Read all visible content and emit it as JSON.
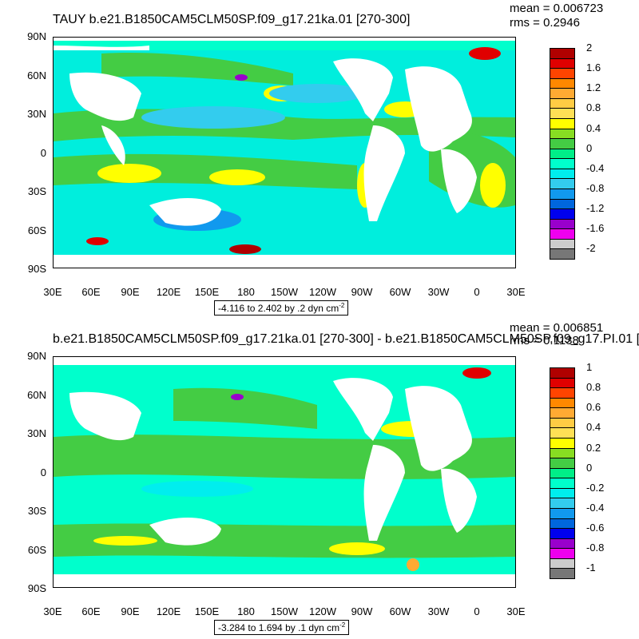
{
  "panels": [
    {
      "title": "TAUY b.e21.B1850CAM5CLM50SP.f09_g17.21ka.01 [270-300]",
      "mean": "mean = 0.006723",
      "rms": "rms = 0.2946",
      "range_label": "-4.116 to 2.402 by .2 dyn cm",
      "range_exp": "-2",
      "lat_labels": [
        "90N",
        "60N",
        "30N",
        "0",
        "30S",
        "60S",
        "90S"
      ],
      "lon_labels": [
        "30E",
        "60E",
        "90E",
        "120E",
        "150E",
        "180",
        "150W",
        "120W",
        "90W",
        "60W",
        "30W",
        "0",
        "30E"
      ],
      "colorbar_labels": [
        "2",
        "1.6",
        "1.2",
        "0.8",
        "0.4",
        "0",
        "-0.4",
        "-0.8",
        "-1.2",
        "-1.6",
        "-2"
      ],
      "colors": [
        "#b00000",
        "#e00000",
        "#ff4400",
        "#ff8800",
        "#ffaa33",
        "#ffcc44",
        "#ffe055",
        "#ffff00",
        "#88dd22",
        "#44cc44",
        "#00ee88",
        "#00ffcc",
        "#00eeee",
        "#33ccee",
        "#1199ee",
        "#0066dd",
        "#0000ee",
        "#9900cc",
        "#ee00ee",
        "#cccccc",
        "#777777"
      ]
    },
    {
      "title": "b.e21.B1850CAM5CLM50SP.f09_g17.21ka.01 [270-300] - b.e21.B1850CAM5CLM50SP.f09_g17.PI.01 [",
      "mean": "mean = 0.006851",
      "rms": "rms = 0.1138",
      "range_label": "-3.284 to 1.694 by .1 dyn cm",
      "range_exp": "-2",
      "lat_labels": [
        "90N",
        "60N",
        "30N",
        "0",
        "30S",
        "60S",
        "90S"
      ],
      "lon_labels": [
        "30E",
        "60E",
        "90E",
        "120E",
        "150E",
        "180",
        "150W",
        "120W",
        "90W",
        "60W",
        "30W",
        "0",
        "30E"
      ],
      "colorbar_labels": [
        "1",
        "0.8",
        "0.6",
        "0.4",
        "0.2",
        "0",
        "-0.2",
        "-0.4",
        "-0.6",
        "-0.8",
        "-1"
      ],
      "colors": [
        "#b00000",
        "#e00000",
        "#ff4400",
        "#ff8800",
        "#ffaa33",
        "#ffcc44",
        "#ffe055",
        "#ffff00",
        "#88dd22",
        "#44cc44",
        "#00ee88",
        "#00ffcc",
        "#00eeee",
        "#33ccee",
        "#1199ee",
        "#0066dd",
        "#0000ee",
        "#9900cc",
        "#ee00ee",
        "#cccccc",
        "#777777"
      ]
    }
  ]
}
